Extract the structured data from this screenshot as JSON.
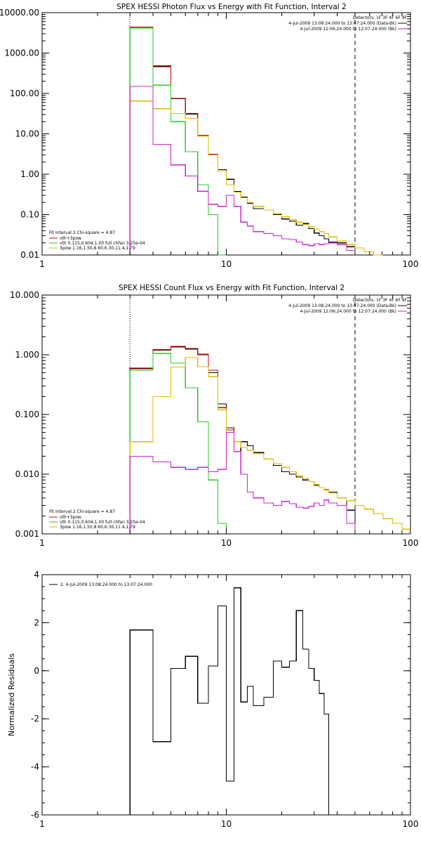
{
  "chart_data": [
    {
      "type": "line",
      "title": "SPEX HESSI Photon Flux vs Energy with Fit Function, Interval 2",
      "xscale": "log",
      "yscale": "log",
      "xlim": [
        1,
        100
      ],
      "ylim": [
        0.01,
        10000
      ],
      "x_ticks": [
        1,
        10,
        100
      ],
      "x_tick_labels": [
        "1",
        "10",
        "100"
      ],
      "y_ticks": [
        0.01,
        0.1,
        1,
        10,
        100,
        1000,
        10000
      ],
      "y_tick_labels": [
        "0.01",
        "0.10",
        "1.00",
        "10.00",
        "100.00",
        "1000.00",
        "10000.00"
      ],
      "vlines": [
        {
          "x": 3,
          "style": "dotted"
        },
        {
          "x": 50,
          "style": "dashed"
        }
      ],
      "header_lines": [
        "Detectors: 1F 3F 4F 6F 9F",
        "4-Jul-2009 13:08:24.000 to 13:07:24.000 (Data-Bk)",
        "4-Jul-2009 12:06:24.000 to 12:07:24.000 (Bk)"
      ],
      "legend_lines": [
        "Fit Interval 2   Chi-square = 4.87",
        "vth+3pow",
        "vth 0.115,0.604,1.00  full chfan 3.25e-04",
        "3pow 1.16,1.50,8.60,6.30,11.4,1.79"
      ],
      "edges": [
        3,
        4,
        5,
        6,
        7,
        8,
        9,
        10,
        11,
        12,
        13,
        14,
        16,
        18,
        20,
        22,
        24,
        26,
        28,
        30,
        32,
        34,
        36,
        40,
        45,
        50,
        56,
        63,
        71
      ],
      "series": [
        {
          "name": "Data-Bk",
          "color": "#000000",
          "start": 0,
          "values": [
            4300,
            460,
            74,
            31,
            9,
            3,
            1.3,
            0.75,
            0.37,
            0.27,
            0.19,
            0.14,
            0.13,
            0.1,
            0.078,
            0.068,
            0.055,
            0.06,
            0.045,
            0.035,
            0.03,
            0.025,
            0.021,
            0.02,
            0.016
          ]
        },
        {
          "name": "vth+3pow",
          "color": "#cc0000",
          "start": 0,
          "values": [
            4400,
            480,
            76,
            32,
            9.2,
            3.1,
            1.2,
            0.55,
            0.36,
            0.26,
            0.2,
            0.16,
            0.13,
            0.105,
            0.088,
            0.075,
            0.065,
            0.057,
            0.05,
            0.044,
            0.038,
            0.034,
            0.028,
            0.022,
            0.018,
            0.015,
            0.012,
            0.01
          ]
        },
        {
          "name": "vth",
          "color": "#22cc22",
          "start": 0,
          "values": [
            4200,
            160,
            20,
            3.6,
            0.55,
            0.1,
            0.01
          ]
        },
        {
          "name": "3pow",
          "color": "#ddbb00",
          "start": 0,
          "values": [
            65,
            42,
            32,
            24,
            8.8,
            3.0,
            1.2,
            0.55,
            0.36,
            0.26,
            0.2,
            0.16,
            0.13,
            0.105,
            0.088,
            0.075,
            0.065,
            0.057,
            0.05,
            0.044,
            0.038,
            0.034,
            0.028,
            0.022,
            0.018,
            0.015,
            0.012,
            0.01
          ]
        },
        {
          "name": "Bk",
          "color": "#cc22cc",
          "start": 0,
          "values": [
            150,
            5.5,
            1.7,
            0.9,
            0.38,
            0.18,
            0.16,
            0.3,
            0.16,
            0.065,
            0.052,
            0.038,
            0.034,
            0.03,
            0.025,
            0.024,
            0.021,
            0.018,
            0.017,
            0.019,
            0.018,
            0.019,
            0.02,
            0.018,
            0.013
          ]
        }
      ]
    },
    {
      "type": "line",
      "title": "SPEX HESSI Count Flux vs Energy with Fit Function, Interval 2",
      "xscale": "log",
      "yscale": "log",
      "xlim": [
        1,
        100
      ],
      "ylim": [
        0.001,
        10
      ],
      "x_ticks": [
        1,
        10,
        100
      ],
      "x_tick_labels": [
        "1",
        "10",
        "100"
      ],
      "y_ticks": [
        0.001,
        0.01,
        0.1,
        1,
        10
      ],
      "y_tick_labels": [
        "0.001",
        "0.010",
        "0.100",
        "1.000",
        "10.000"
      ],
      "vlines": [
        {
          "x": 3,
          "style": "dotted"
        },
        {
          "x": 50,
          "style": "dashed"
        }
      ],
      "header_lines": [
        "Detectors: 1F 3F 4F 6F 9F",
        "4-Jul-2009 13:08:24.000 to 13:07:24.000 (Data-Bk)",
        "4-Jul-2009 12:06:24.000 to 12:07:24.000 (Bk)"
      ],
      "legend_lines": [
        "Fit Interval 2   Chi-square = 4.87",
        "vth+3pow",
        "vth 0.115,0.604,1.00  full chfan 3.25e-04",
        "3pow 1.16,1.50,8.60,6.30,11.4,1.79"
      ],
      "edges": [
        3,
        4,
        5,
        6,
        7,
        8,
        9,
        10,
        11,
        12,
        13,
        14,
        16,
        18,
        20,
        22,
        24,
        26,
        28,
        30,
        32,
        34,
        36,
        40,
        45,
        50,
        56,
        63,
        71,
        80,
        90,
        100
      ],
      "series": [
        {
          "name": "Data-Bk",
          "color": "#000000",
          "start": 0,
          "values": [
            0.6,
            1.2,
            1.35,
            1.25,
            1.0,
            0.5,
            0.15,
            0.06,
            0.024,
            0.035,
            0.03,
            0.023,
            0.018,
            0.014,
            0.011,
            0.01,
            0.009,
            0.008,
            0.0075,
            0.0065,
            0.006,
            0.0055,
            0.005,
            0.004,
            0.0025
          ]
        },
        {
          "name": "vth+3pow",
          "color": "#cc0000",
          "start": 0,
          "values": [
            0.58,
            1.22,
            1.38,
            1.28,
            1.02,
            0.55,
            0.13,
            0.055,
            0.035,
            0.028,
            0.025,
            0.022,
            0.018,
            0.015,
            0.013,
            0.011,
            0.0095,
            0.0085,
            0.0075,
            0.0067,
            0.006,
            0.0054,
            0.0048,
            0.004,
            0.0036,
            0.003,
            0.0026,
            0.0022,
            0.0018,
            0.0015,
            0.0012
          ]
        },
        {
          "name": "vth",
          "color": "#22cc22",
          "start": 0,
          "values": [
            0.55,
            1.05,
            0.72,
            0.28,
            0.075,
            0.008,
            0.0015
          ]
        },
        {
          "name": "3pow",
          "color": "#ddbb00",
          "start": 0,
          "values": [
            0.035,
            0.2,
            0.62,
            0.9,
            0.63,
            0.43,
            0.12,
            0.05,
            0.035,
            0.028,
            0.025,
            0.022,
            0.018,
            0.015,
            0.013,
            0.011,
            0.0095,
            0.0085,
            0.0075,
            0.0067,
            0.006,
            0.0054,
            0.0048,
            0.004,
            0.0036,
            0.003,
            0.0026,
            0.0022,
            0.0018,
            0.0015,
            0.0012
          ]
        },
        {
          "name": "Bk",
          "color": "#cc22cc",
          "start": 0,
          "values": [
            0.02,
            0.016,
            0.013,
            0.012,
            0.013,
            0.011,
            0.012,
            0.05,
            0.024,
            0.01,
            0.005,
            0.004,
            0.0033,
            0.003,
            0.0035,
            0.0032,
            0.0028,
            0.0027,
            0.0029,
            0.0033,
            0.003,
            0.0037,
            0.0033,
            0.003,
            0.0015
          ]
        }
      ]
    },
    {
      "type": "line",
      "title": "",
      "ylabel": "Normalized Residuals",
      "xscale": "log",
      "yscale": "linear",
      "xlim": [
        1,
        100
      ],
      "ylim": [
        -6,
        4
      ],
      "x_ticks": [
        1,
        10,
        100
      ],
      "x_tick_labels": [
        "1",
        "10",
        "100"
      ],
      "y_ticks": [
        -6,
        -4,
        -2,
        0,
        2,
        4
      ],
      "y_tick_labels": [
        "-6",
        "-4",
        "-2",
        "0",
        "2",
        "4"
      ],
      "legend_lines": [
        "2.  4-Jul-2009 13:08:24.000 to 13:07:24.000"
      ],
      "edges": [
        3,
        4,
        5,
        6,
        7,
        8,
        9,
        10,
        11,
        12,
        13,
        14,
        16,
        18,
        20,
        22,
        24,
        26,
        28,
        30,
        32,
        34,
        36,
        40,
        45,
        50
      ],
      "series": [
        {
          "name": "2.",
          "color": "#000000",
          "start": 0,
          "values": [
            1.7,
            -2.95,
            0.1,
            0.6,
            -1.35,
            0.2,
            2.7,
            -4.6,
            3.45,
            -1.3,
            -0.65,
            -1.45,
            -1.1,
            0.4,
            0.15,
            0.4,
            2.5,
            0.9,
            0.1,
            -0.4,
            -0.95,
            -1.8
          ]
        }
      ]
    }
  ]
}
